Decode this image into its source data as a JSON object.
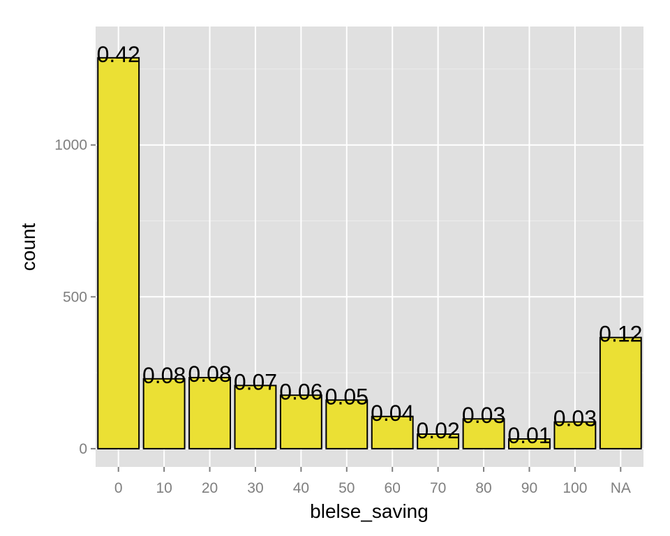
{
  "chart_data": {
    "type": "bar",
    "xlabel": "blelse_saving",
    "ylabel": "count",
    "categories": [
      "0",
      "10",
      "20",
      "30",
      "40",
      "50",
      "60",
      "70",
      "80",
      "90",
      "100",
      "NA"
    ],
    "values": [
      1287,
      230,
      234,
      208,
      176,
      160,
      106,
      48,
      98,
      32,
      88,
      366
    ],
    "data_labels": [
      "0.42",
      "0.08",
      "0.08",
      "0.07",
      "0.06",
      "0.05",
      "0.04",
      "0.02",
      "0.03",
      "0.01",
      "0.03",
      "0.12"
    ],
    "yticks": [
      0,
      500,
      1000
    ],
    "ylim": [
      -60,
      1390
    ],
    "grid": true,
    "legend": "none",
    "colors": {
      "bar_fill": "#ebe034",
      "bar_stroke": "#000000",
      "panel_bg": "#e0e0e0",
      "grid_major": "#ffffff",
      "grid_minor": "#ededed",
      "tick_text": "#7f7f7f"
    }
  }
}
